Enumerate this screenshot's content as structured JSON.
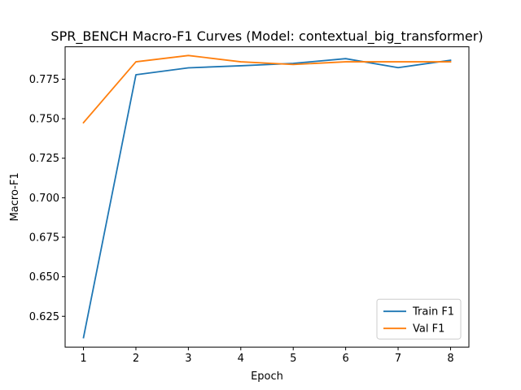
{
  "chart_data": {
    "type": "line",
    "title": "SPR_BENCH Macro-F1 Curves (Model: contextual_big_transformer)",
    "xlabel": "Epoch",
    "ylabel": "Macro-F1",
    "x": [
      1,
      2,
      3,
      4,
      5,
      6,
      7,
      8
    ],
    "xlim": [
      0.65,
      8.35
    ],
    "ylim": [
      0.6055,
      0.7955
    ],
    "xticks": [
      1,
      2,
      3,
      4,
      5,
      6,
      7,
      8
    ],
    "yticks": [
      0.625,
      0.65,
      0.675,
      0.7,
      0.725,
      0.75,
      0.775
    ],
    "ytick_labels": [
      "0.625",
      "0.650",
      "0.675",
      "0.700",
      "0.725",
      "0.750",
      "0.775"
    ],
    "series": [
      {
        "name": "Train F1",
        "color": "#1f77b4",
        "values": [
          0.6115,
          0.7778,
          0.7822,
          0.7835,
          0.785,
          0.788,
          0.7823,
          0.787
        ]
      },
      {
        "name": "Val F1",
        "color": "#ff7f0e",
        "values": [
          0.7475,
          0.786,
          0.79,
          0.786,
          0.7843,
          0.786,
          0.786,
          0.786
        ]
      }
    ],
    "legend_position": "lower-right",
    "grid": false
  }
}
